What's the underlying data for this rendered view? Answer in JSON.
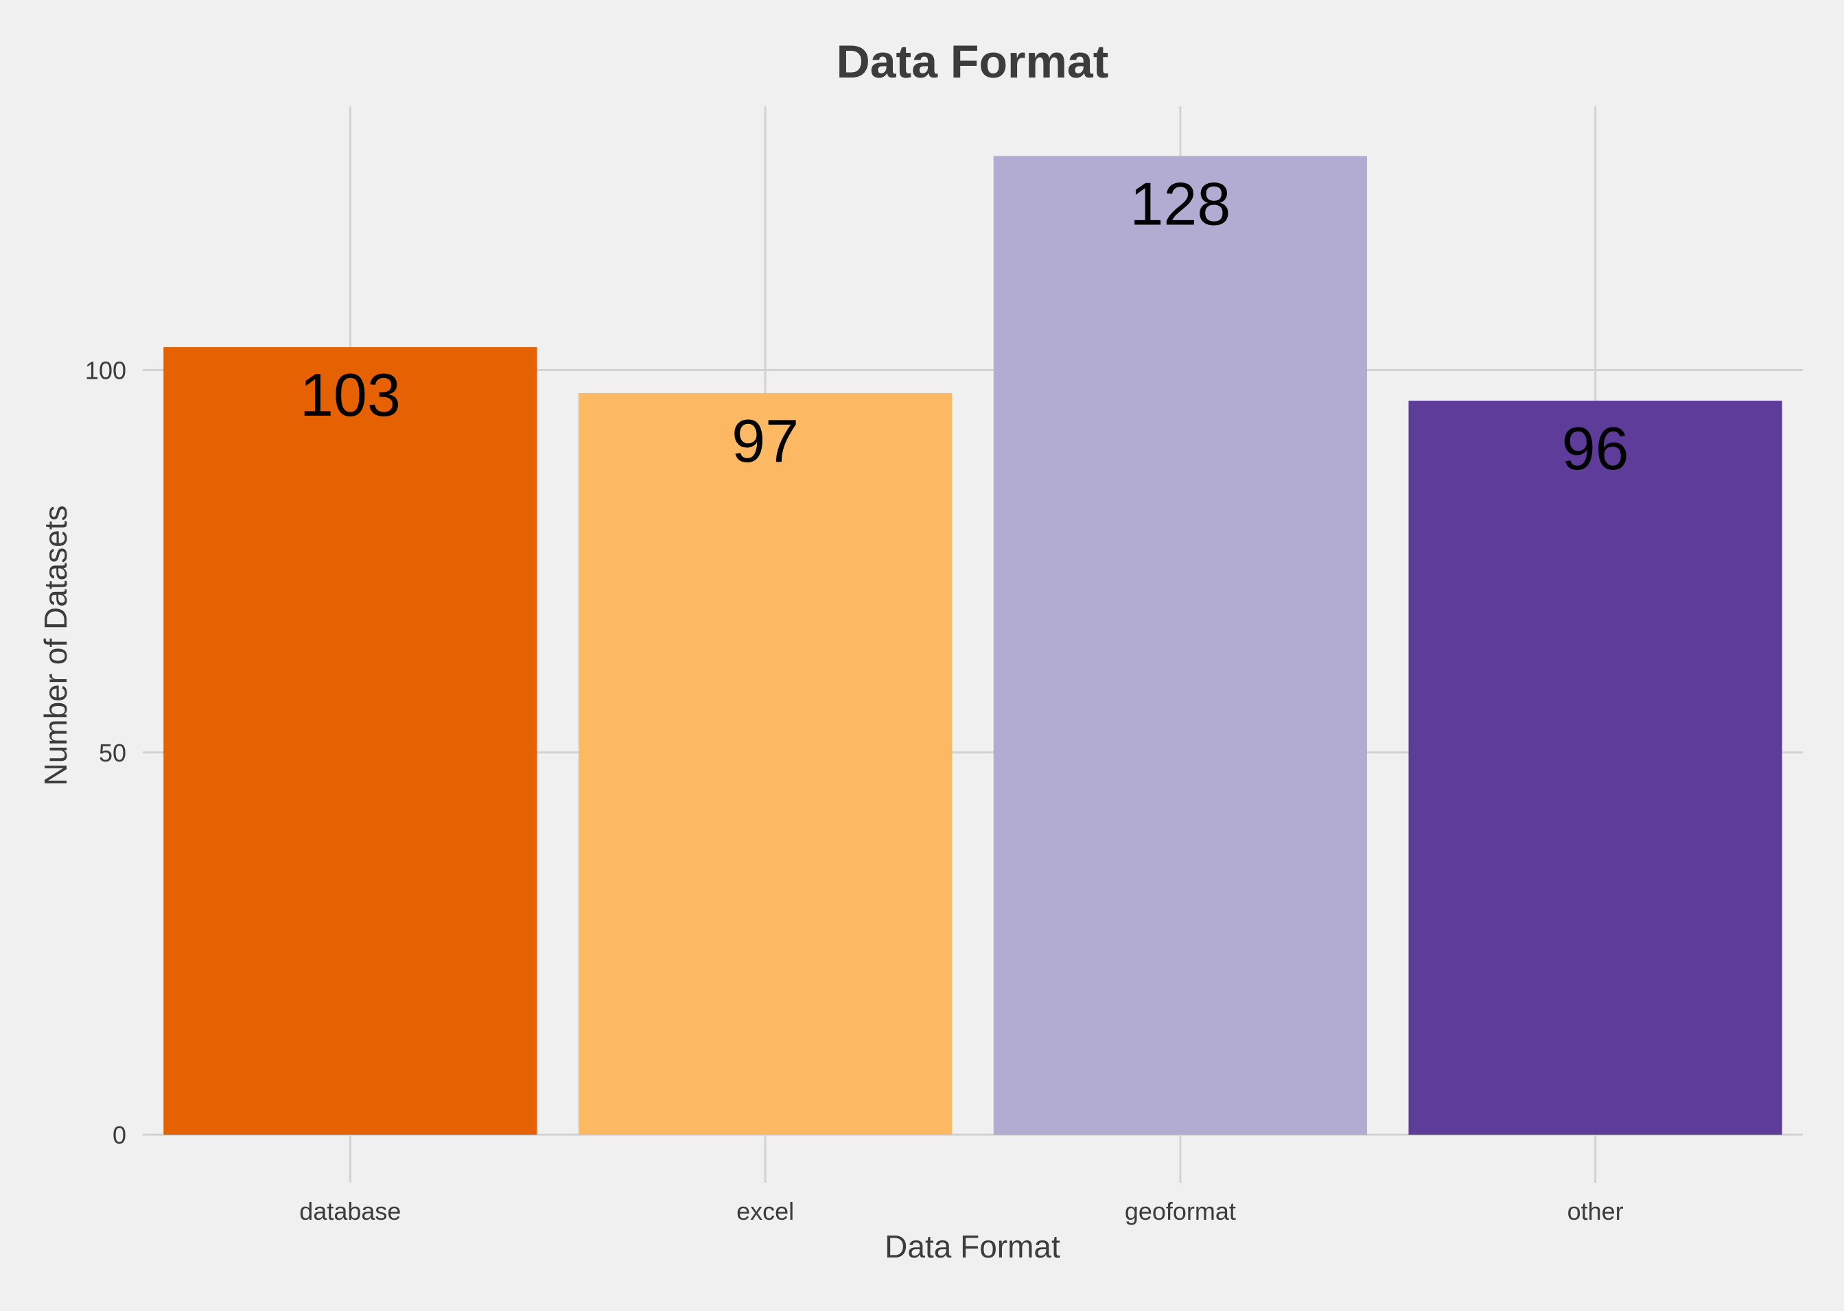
{
  "chart_data": {
    "type": "bar",
    "title": "Data Format",
    "xlabel": "Data Format",
    "ylabel": "Number of Datasets",
    "categories": [
      "database",
      "excel",
      "geoformat",
      "other"
    ],
    "values": [
      103,
      97,
      128,
      96
    ],
    "colors": [
      "#e66101",
      "#fdb863",
      "#b2abd2",
      "#5e3c99"
    ],
    "ylim": [
      0,
      134.5
    ],
    "yticks": [
      0,
      50,
      100
    ],
    "grid": true,
    "legend": "none",
    "background": "#f0f0f0"
  }
}
